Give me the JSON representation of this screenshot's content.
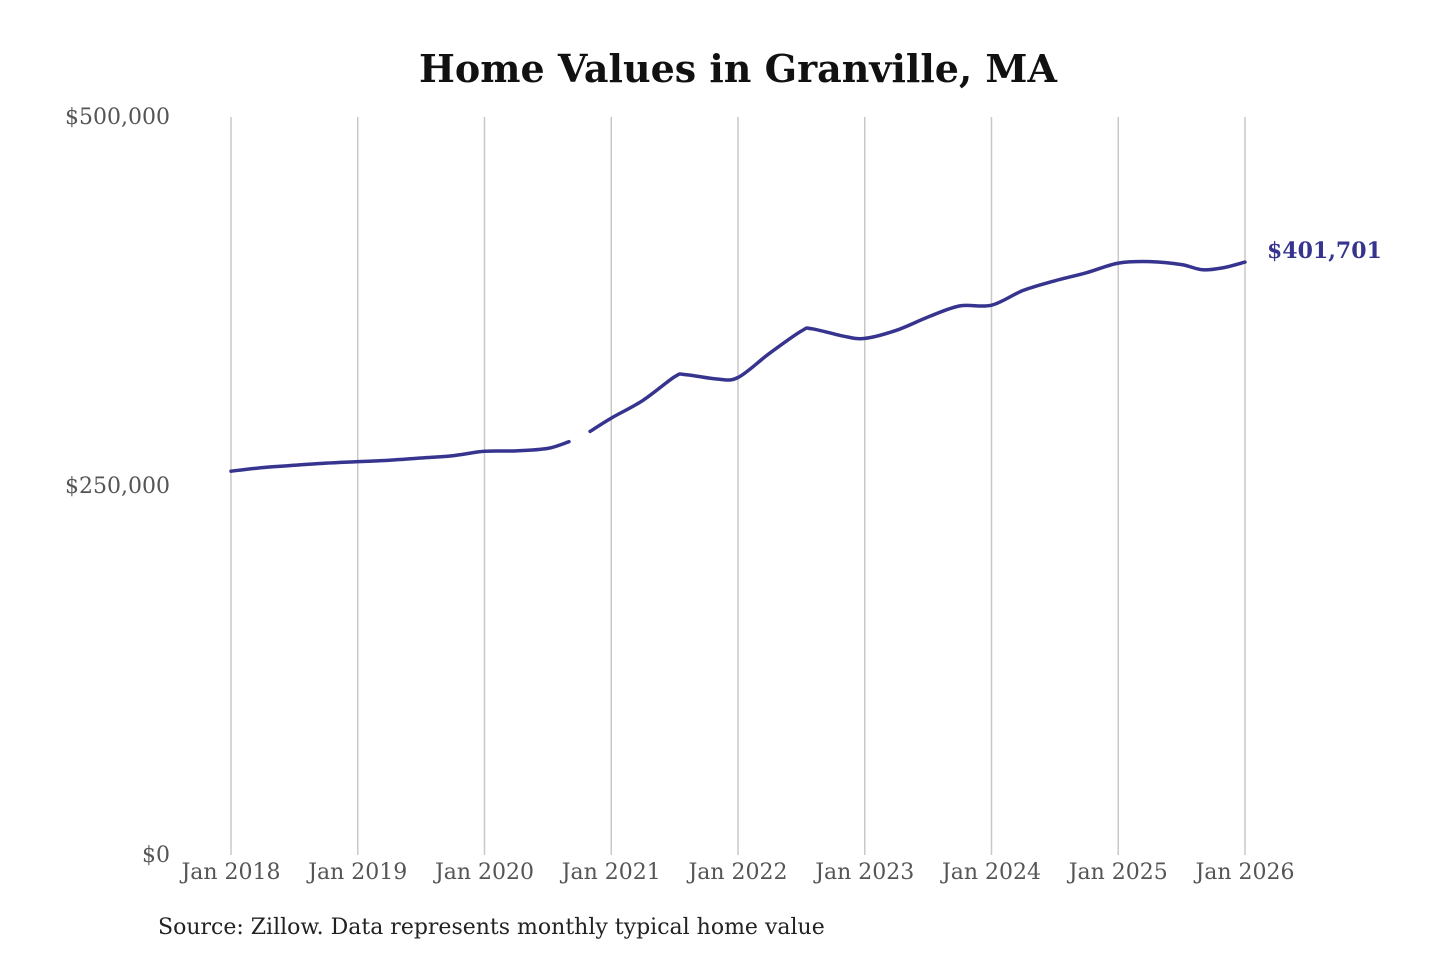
{
  "colors": {
    "series": "#37348f",
    "grid": "#c8c8c8",
    "title": "#111111",
    "tick": "#555555"
  },
  "source_note": "Source: Zillow. Data represents monthly typical home value",
  "chart_data": {
    "type": "line",
    "title": "Home Values in Granville, MA",
    "xlabel": "",
    "ylabel": "",
    "ylim": [
      0,
      500000
    ],
    "yticks": [
      {
        "value": 0,
        "label": "$0"
      },
      {
        "value": 250000,
        "label": "$250,000"
      },
      {
        "value": 500000,
        "label": "$500,000"
      }
    ],
    "xticks": [
      {
        "value": "2018-01",
        "label": "Jan 2018"
      },
      {
        "value": "2019-01",
        "label": "Jan 2019"
      },
      {
        "value": "2020-01",
        "label": "Jan 2020"
      },
      {
        "value": "2021-01",
        "label": "Jan 2021"
      },
      {
        "value": "2022-01",
        "label": "Jan 2022"
      },
      {
        "value": "2023-01",
        "label": "Jan 2023"
      },
      {
        "value": "2024-01",
        "label": "Jan 2024"
      },
      {
        "value": "2025-01",
        "label": "Jan 2025"
      },
      {
        "value": "2026-01",
        "label": "Jan 2026"
      }
    ],
    "grid": "vertical",
    "end_label": "$401,701",
    "series": [
      {
        "segments": [
          [
            [
              "2018-01",
              260000
            ],
            [
              "2018-04",
              262500
            ],
            [
              "2018-07",
              264000
            ],
            [
              "2018-10",
              265500
            ],
            [
              "2019-01",
              266500
            ],
            [
              "2019-04",
              267500
            ],
            [
              "2019-07",
              269000
            ],
            [
              "2019-10",
              270500
            ],
            [
              "2020-01",
              273500
            ],
            [
              "2020-04",
              273800
            ],
            [
              "2020-07",
              275500
            ],
            [
              "2020-09",
              280000
            ]
          ],
          [
            [
              "2020-11",
              287000
            ],
            [
              "2021-01",
              296000
            ],
            [
              "2021-04",
              308000
            ],
            [
              "2021-07",
              324000
            ],
            [
              "2021-08",
              325500
            ],
            [
              "2021-11",
              322500
            ],
            [
              "2022-01",
              323500
            ],
            [
              "2022-04",
              340000
            ],
            [
              "2022-07",
              355000
            ],
            [
              "2022-08",
              356500
            ],
            [
              "2022-11",
              351500
            ],
            [
              "2023-01",
              350000
            ],
            [
              "2023-04",
              355500
            ],
            [
              "2023-07",
              364500
            ],
            [
              "2023-10",
              372000
            ],
            [
              "2024-01",
              372500
            ],
            [
              "2024-04",
              382500
            ],
            [
              "2024-07",
              389000
            ],
            [
              "2024-10",
              394500
            ],
            [
              "2025-01",
              401000
            ],
            [
              "2025-04",
              402000
            ],
            [
              "2025-07",
              400000
            ],
            [
              "2025-09",
              396500
            ],
            [
              "2025-11",
              398000
            ],
            [
              "2026-01",
              401701
            ]
          ]
        ]
      }
    ]
  }
}
